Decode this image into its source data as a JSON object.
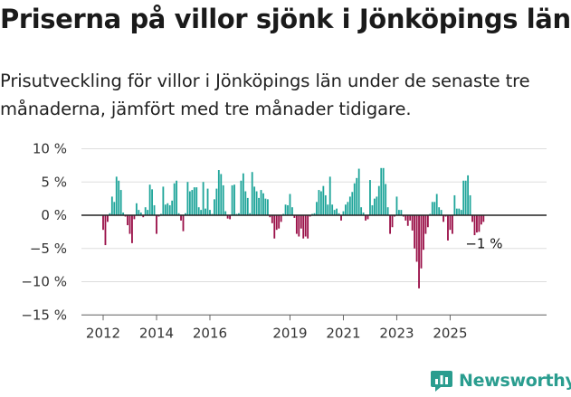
{
  "header": {
    "title": "Priserna på villor sjönk i Jönköpings län",
    "subtitle": "Prisutveckling för villor i Jönköpings län under de senaste tre månaderna, jämfört med tre månader tidigare."
  },
  "brand": {
    "name": "Newsworthy",
    "icon": "newsworthy-logo-icon",
    "color": "#2a9d8f"
  },
  "colors": {
    "positive": "#1fa59a",
    "negative": "#9a1048",
    "zero_line": "#222222",
    "grid": "#dddddd"
  },
  "chart_data": {
    "type": "bar",
    "title": "Priserna på villor sjönk i Jönköpings län",
    "xlabel": "",
    "ylabel": "",
    "ylim": [
      -15,
      10
    ],
    "yticks": [
      10,
      5,
      0,
      -5,
      -10,
      -15
    ],
    "ytick_labels": [
      "10 %",
      "5 %",
      "0 %",
      "−5 %",
      "−10 %",
      "−15 %"
    ],
    "xticks": [
      "2012",
      "2014",
      "2016",
      "2019",
      "2021",
      "2023",
      "2025"
    ],
    "grid": true,
    "start": "2012-01",
    "frequency": "monthly",
    "last_value_label": "−1 %",
    "values": [
      -2.2,
      -4.5,
      -1.0,
      0.3,
      2.8,
      2.0,
      5.8,
      5.2,
      3.8,
      0.4,
      -0.2,
      -1.5,
      -2.8,
      -4.2,
      -0.6,
      1.8,
      0.8,
      0.4,
      -0.3,
      1.2,
      0.8,
      4.6,
      3.9,
      1.5,
      -2.8,
      -0.2,
      0.2,
      4.3,
      1.6,
      1.8,
      1.5,
      2.2,
      4.8,
      5.2,
      0.3,
      -0.8,
      -2.4,
      0.3,
      5.0,
      3.6,
      3.8,
      4.2,
      4.2,
      1.2,
      0.8,
      5.0,
      1.0,
      4.0,
      0.8,
      0.2,
      2.4,
      4.0,
      6.8,
      6.2,
      4.5,
      0.6,
      -0.5,
      -0.6,
      4.5,
      4.6,
      0.2,
      0.3,
      5.2,
      6.3,
      3.6,
      2.6,
      0.3,
      6.5,
      4.3,
      3.6,
      2.6,
      3.8,
      3.3,
      2.5,
      2.4,
      -0.3,
      -1.2,
      -3.5,
      -2.2,
      -2.0,
      -1.0,
      0.2,
      1.6,
      1.5,
      3.2,
      1.2,
      -0.4,
      -2.8,
      -3.2,
      -2.0,
      -3.5,
      -3.2,
      -3.5,
      -0.2,
      0.2,
      0.3,
      2.0,
      3.8,
      3.6,
      4.4,
      3.0,
      1.6,
      5.8,
      1.6,
      0.8,
      1.0,
      0.3,
      -0.8,
      0.6,
      1.6,
      2.0,
      2.8,
      3.5,
      4.8,
      5.6,
      7.0,
      1.2,
      0.4,
      -0.8,
      -0.6,
      5.3,
      1.5,
      2.5,
      2.8,
      4.4,
      7.1,
      7.1,
      4.7,
      1.2,
      -2.8,
      -1.8,
      -0.2,
      2.8,
      0.8,
      0.8,
      -0.2,
      -0.8,
      -1.6,
      -0.8,
      -2.3,
      -5.0,
      -7.0,
      -11.0,
      -8.0,
      -5.2,
      -2.8,
      -1.8,
      0.2,
      2.0,
      2.0,
      3.2,
      1.2,
      0.8,
      -1.0,
      -0.2,
      -3.8,
      -2.2,
      -2.8,
      3.0,
      1.0,
      1.0,
      0.8,
      5.2,
      5.2,
      6.0,
      3.0,
      -1.0,
      -3.0,
      -2.6,
      -2.5,
      -1.4,
      -1.0
    ]
  }
}
